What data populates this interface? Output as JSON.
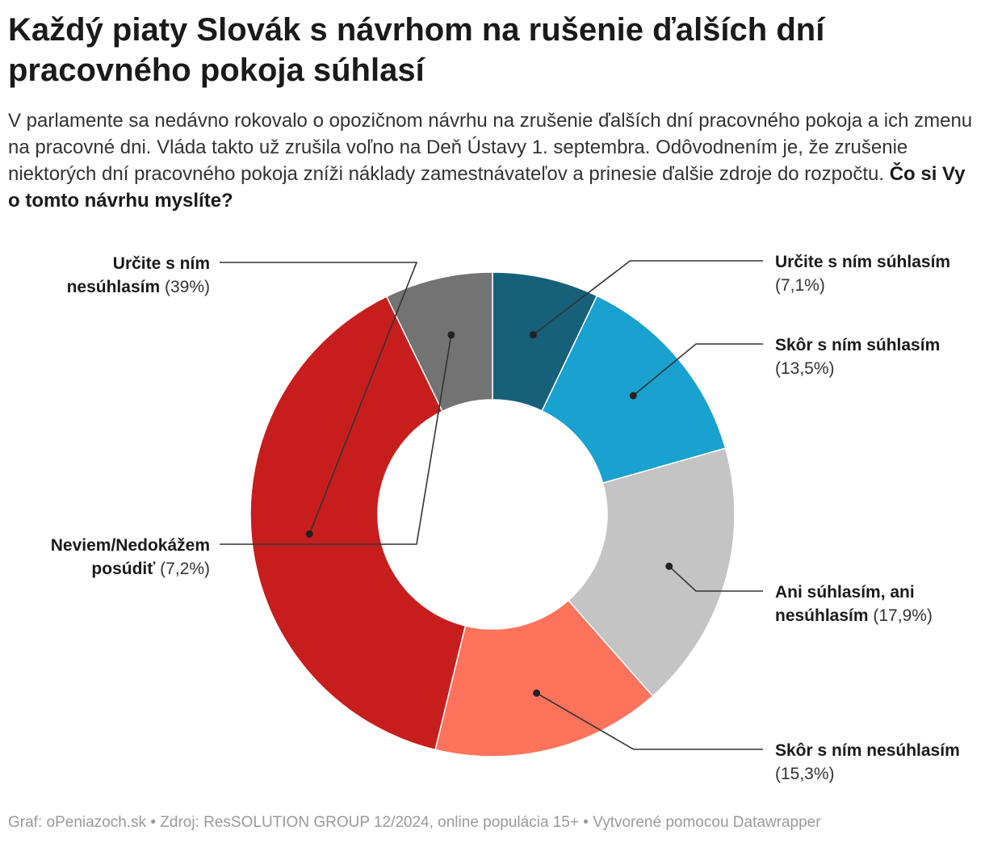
{
  "title": "Každý piaty Slovák s návrhom na rušenie ďalších dní pracovného pokoja súhlasí",
  "description": "V parlamente sa nedávno rokovalo o opozičnom návrhu na zrušenie ďalších dní pracovného pokoja a ich zmenu na pracovné dni. Vláda takto už zrušila voľno na Deň Ústavy 1. septembra. Odôvodnením je, že zrušenie niektorých dní pracovného pokoja zníži náklady zamestnávateľov a prinesie ďalšie zdroje do rozpočtu.",
  "question": "Čo si Vy o tomto návrhu myslíte?",
  "footer": "Graf: oPeniazoch.sk • Zdroj: ResSOLUTION GROUP 12/2024, online populácia 15+ • Vytvorené pomocou Datawrapper",
  "chart_data": {
    "type": "pie",
    "variant": "donut",
    "slices": [
      {
        "name": "Určite s ním súhlasím",
        "value": 7.1,
        "value_label": "(7,1%)",
        "color": "#16607a",
        "label_lines": [
          "Určite s ním súhlasím"
        ],
        "label_side": "right"
      },
      {
        "name": "Skôr s ním súhlasím",
        "value": 13.5,
        "value_label": "(13,5%)",
        "color": "#19a1cf",
        "label_lines": [
          "Skôr s ním súhlasím"
        ],
        "label_side": "right"
      },
      {
        "name": "Ani súhlasím, ani nesúhlasím",
        "value": 17.9,
        "value_label": "(17,9%)",
        "color": "#c4c4c4",
        "label_lines": [
          "Ani súhlasím, ani",
          "nesúhlasím"
        ],
        "label_side": "right"
      },
      {
        "name": "Skôr s ním nesúhlasím",
        "value": 15.3,
        "value_label": "(15,3%)",
        "color": "#ff725c",
        "label_lines": [
          "Skôr s ním nesúhlasím"
        ],
        "label_side": "right"
      },
      {
        "name": "Určite s ním nesúhlasím",
        "value": 39,
        "value_label": "(39%)",
        "color": "#c71e1d",
        "label_lines": [
          "Určite s ním",
          "nesúhlasím"
        ],
        "label_side": "left"
      },
      {
        "name": "Neviem/Nedokážem posúdiť",
        "value": 7.2,
        "value_label": "(7,2%)",
        "color": "#737373",
        "label_lines": [
          "Neviem/Nedokážem",
          "posúdiť"
        ],
        "label_side": "left"
      }
    ]
  }
}
